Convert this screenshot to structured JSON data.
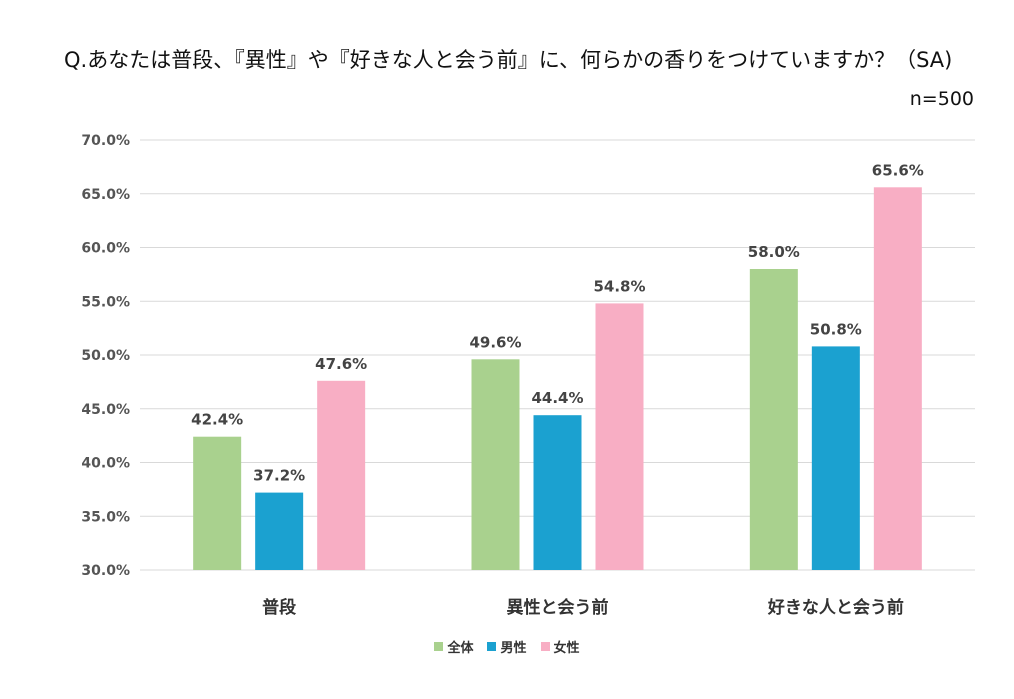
{
  "title": "Q.あなたは普段、『異性』や『好きな人と会う前』に、何らかの香りをつけていますか？（SA)",
  "note": "n=500",
  "chart_data": {
    "type": "bar",
    "categories": [
      "普段",
      "異性と会う前",
      "好きな人と会う前"
    ],
    "series": [
      {
        "name": "全体",
        "color": "#a9d18e",
        "values": [
          42.4,
          49.6,
          58.0
        ],
        "labels": [
          "42.4%",
          "49.6%",
          "58.0%"
        ]
      },
      {
        "name": "男性",
        "color": "#1ba1d0",
        "values": [
          37.2,
          44.4,
          50.8
        ],
        "labels": [
          "37.2%",
          "44.4%",
          "50.8%"
        ]
      },
      {
        "name": "女性",
        "color": "#f8aec4",
        "values": [
          47.6,
          54.8,
          65.6
        ],
        "labels": [
          "47.6%",
          "54.8%",
          "65.6%"
        ]
      }
    ],
    "ylim": [
      30,
      70
    ],
    "y_ticks": [
      "30.0%",
      "35.0%",
      "40.0%",
      "45.0%",
      "50.0%",
      "55.0%",
      "60.0%",
      "65.0%",
      "70.0%"
    ],
    "grid": true,
    "legend_position": "bottom"
  }
}
